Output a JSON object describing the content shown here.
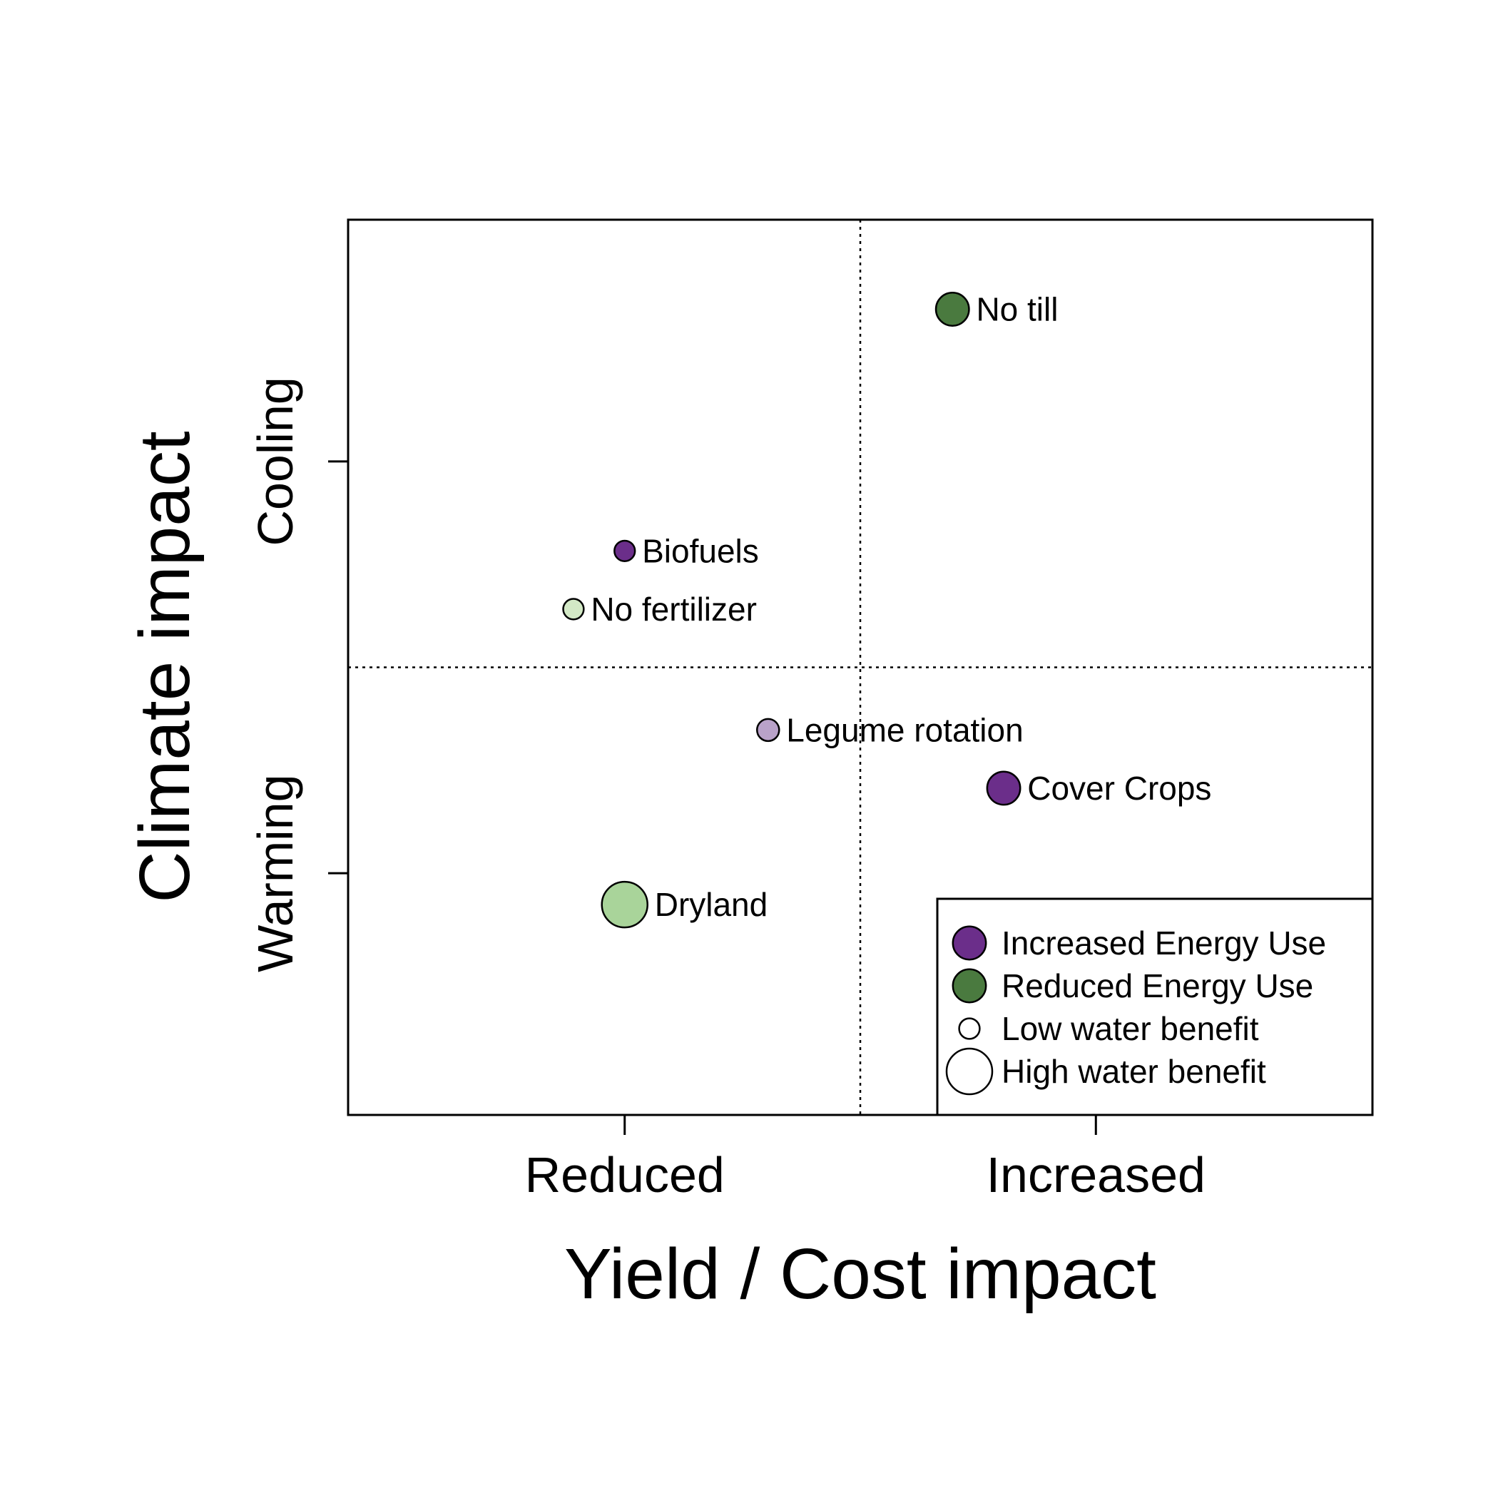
{
  "chart_data": {
    "type": "scatter",
    "xlabel": "Yield / Cost impact",
    "ylabel": "Climate impact",
    "xlim": [
      0,
      10
    ],
    "ylim": [
      0,
      10
    ],
    "x_ticks": [
      {
        "value": 2.7,
        "label": "Reduced"
      },
      {
        "value": 7.3,
        "label": "Increased"
      }
    ],
    "y_ticks": [
      {
        "value": 7.3,
        "label": "Cooling"
      },
      {
        "value": 2.7,
        "label": "Warming"
      }
    ],
    "reference_lines": {
      "x": 5.0,
      "y": 5.0,
      "style": "dotted"
    },
    "grid": false,
    "points": [
      {
        "label": "No till",
        "x": 5.9,
        "y": 9.0,
        "energy": "Reduced Energy Use",
        "water_benefit": 0.6,
        "color": "#4a7a3f"
      },
      {
        "label": "Biofuels",
        "x": 2.7,
        "y": 6.3,
        "energy": "Increased Energy Use",
        "water_benefit": 0.2,
        "color": "#6b2e8a"
      },
      {
        "label": "No fertilizer",
        "x": 2.2,
        "y": 5.65,
        "energy": "Reduced Energy Use",
        "water_benefit": 0.2,
        "color": "#d3e9c6"
      },
      {
        "label": "Legume rotation",
        "x": 4.1,
        "y": 4.3,
        "energy": "Increased Energy Use",
        "water_benefit": 0.25,
        "color": "#b9a2c9"
      },
      {
        "label": "Cover Crops",
        "x": 6.4,
        "y": 3.65,
        "energy": "Increased Energy Use",
        "water_benefit": 0.6,
        "color": "#6b2e8a"
      },
      {
        "label": "Dryland",
        "x": 2.7,
        "y": 2.35,
        "energy": "Reduced Energy Use",
        "water_benefit": 1.0,
        "color": "#a9d49a"
      }
    ],
    "legend": {
      "position": "bottom-right",
      "entries": [
        {
          "label": "Increased Energy Use",
          "color": "#6b2e8a",
          "size": 0.6
        },
        {
          "label": "Reduced Energy Use",
          "color": "#4a7a3f",
          "size": 0.6
        },
        {
          "label": "Low water benefit",
          "color": "#ffffff",
          "size": 0.2
        },
        {
          "label": "High water benefit",
          "color": "#ffffff",
          "size": 1.0
        }
      ]
    }
  }
}
